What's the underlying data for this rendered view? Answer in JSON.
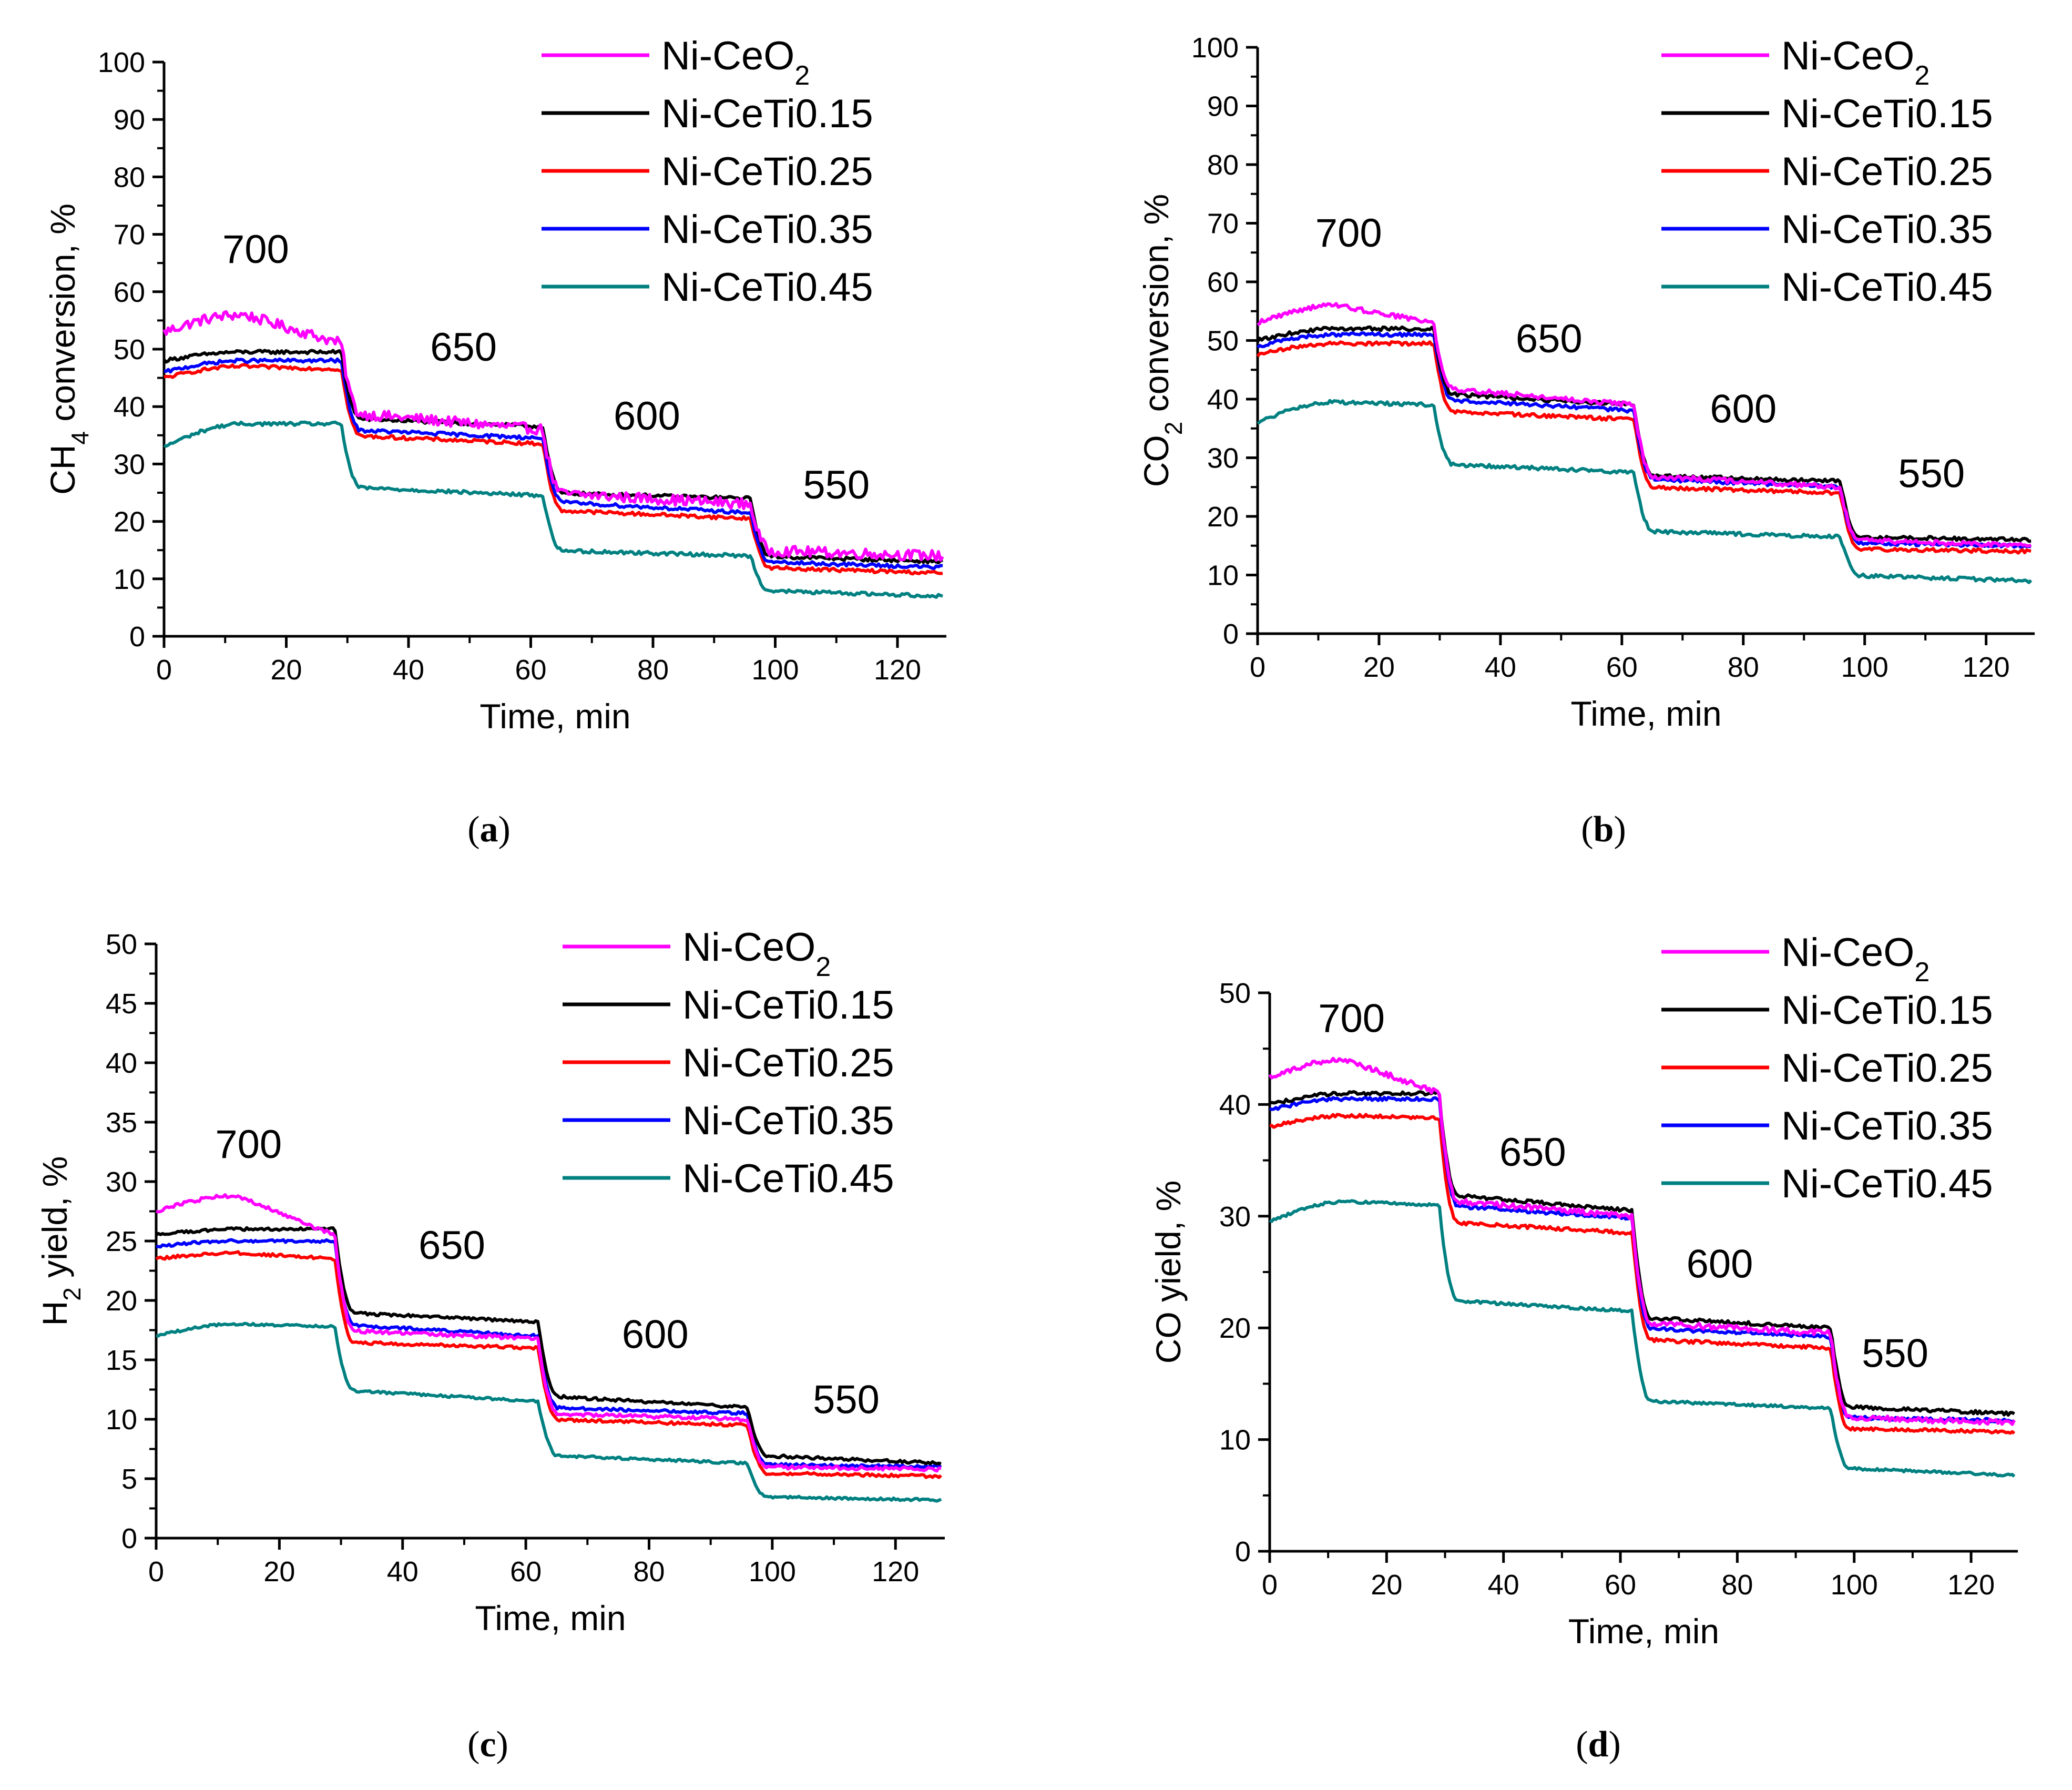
{
  "chart_data": [
    {
      "type": "line",
      "panel": "a",
      "caption_label": "a",
      "xlabel": "Time, min",
      "ylabel_main": "CH",
      "ylabel_sub": "4",
      "ylabel_rest": " conversion, %",
      "xlim": [
        0,
        128
      ],
      "ylim": [
        0,
        100
      ],
      "xticks": [
        0,
        20,
        40,
        60,
        80,
        100,
        120
      ],
      "yticks": [
        0,
        10,
        20,
        30,
        40,
        50,
        60,
        70,
        80,
        90,
        100
      ],
      "step_times": [
        29,
        62,
        96
      ],
      "series": [
        {
          "name": "Ni-CeO2",
          "color": "#ff00ff",
          "levels": [
            [
              53,
              56,
              51
            ],
            [
              39,
              36
            ],
            [
              25,
              23
            ],
            [
              15,
              14
            ]
          ],
          "noise": 0.9
        },
        {
          "name": "Ni-CeTi0.15",
          "color": "#000000",
          "levels": [
            [
              48,
              49.5,
              49.5
            ],
            [
              38,
              36.5
            ],
            [
              25,
              24
            ],
            [
              14,
              13
            ]
          ],
          "noise": 0.3
        },
        {
          "name": "Ni-CeTi0.25",
          "color": "#ff0000",
          "levels": [
            [
              45,
              47,
              46.5
            ],
            [
              35,
              33.5
            ],
            [
              22,
              20.5
            ],
            [
              12,
              11
            ]
          ],
          "noise": 0.3
        },
        {
          "name": "Ni-CeTi0.35",
          "color": "#0000ff",
          "levels": [
            [
              46,
              48,
              48
            ],
            [
              36,
              34.5
            ],
            [
              23.5,
              21.5
            ],
            [
              13,
              12
            ]
          ],
          "noise": 0.3
        },
        {
          "name": "Ni-CeTi0.45",
          "color": "#008080",
          "levels": [
            [
              33,
              37,
              37
            ],
            [
              26,
              24.5
            ],
            [
              15,
              14
            ],
            [
              8,
              7
            ]
          ],
          "noise": 0.3
        }
      ],
      "annotations": [
        {
          "text": "700",
          "x": 15,
          "y": 65
        },
        {
          "text": "650",
          "x": 49,
          "y": 48
        },
        {
          "text": "600",
          "x": 79,
          "y": 36
        },
        {
          "text": "550",
          "x": 110,
          "y": 24
        }
      ],
      "legend": {
        "position": "top-right",
        "entries": [
          {
            "main": "Ni-CeO",
            "sub": "2",
            "color": "#ff00ff"
          },
          {
            "main": "Ni-CeTi0.15",
            "sub": "",
            "color": "#000000"
          },
          {
            "main": "Ni-CeTi0.25",
            "sub": "",
            "color": "#ff0000"
          },
          {
            "main": "Ni-CeTi0.35",
            "sub": "",
            "color": "#0000ff"
          },
          {
            "main": "Ni-CeTi0.45",
            "sub": "",
            "color": "#008080"
          }
        ]
      }
    },
    {
      "type": "line",
      "panel": "b",
      "caption_label": "b",
      "xlabel": "Time, min",
      "ylabel_main": "CO",
      "ylabel_sub": "2",
      "ylabel_rest": " conversion, %",
      "xlim": [
        0,
        128
      ],
      "ylim": [
        0,
        100
      ],
      "xticks": [
        0,
        20,
        40,
        60,
        80,
        100,
        120
      ],
      "yticks": [
        0,
        10,
        20,
        30,
        40,
        50,
        60,
        70,
        80,
        90,
        100
      ],
      "step_times": [
        29,
        62,
        96
      ],
      "series": [
        {
          "name": "Ni-CeO2",
          "color": "#ff00ff",
          "levels": [
            [
              53,
              56,
              53
            ],
            [
              42,
              39
            ],
            [
              27,
              25
            ],
            [
              16,
              15
            ]
          ],
          "noise": 0.4
        },
        {
          "name": "Ni-CeTi0.15",
          "color": "#000000",
          "levels": [
            [
              50,
              52,
              52
            ],
            [
              41,
              39
            ],
            [
              27,
              26
            ],
            [
              16.5,
              16
            ]
          ],
          "noise": 0.3
        },
        {
          "name": "Ni-CeTi0.25",
          "color": "#ff0000",
          "levels": [
            [
              47.5,
              49.5,
              49.5
            ],
            [
              38,
              36.5
            ],
            [
              25,
              24
            ],
            [
              14.5,
              14
            ]
          ],
          "noise": 0.3
        },
        {
          "name": "Ni-CeTi0.35",
          "color": "#0000ff",
          "levels": [
            [
              49,
              51,
              51
            ],
            [
              40,
              38
            ],
            [
              26.5,
              25
            ],
            [
              15.5,
              15
            ]
          ],
          "noise": 0.3
        },
        {
          "name": "Ni-CeTi0.45",
          "color": "#008080",
          "levels": [
            [
              36,
              39.5,
              39
            ],
            [
              29,
              27.5
            ],
            [
              17.5,
              16.5
            ],
            [
              10,
              9
            ]
          ],
          "noise": 0.3
        }
      ],
      "annotations": [
        {
          "text": "700",
          "x": 15,
          "y": 66
        },
        {
          "text": "650",
          "x": 48,
          "y": 48
        },
        {
          "text": "600",
          "x": 80,
          "y": 36
        },
        {
          "text": "550",
          "x": 111,
          "y": 25
        }
      ],
      "legend": {
        "position": "top-right",
        "entries": [
          {
            "main": "Ni-CeO",
            "sub": "2",
            "color": "#ff00ff"
          },
          {
            "main": "Ni-CeTi0.15",
            "sub": "",
            "color": "#000000"
          },
          {
            "main": "Ni-CeTi0.25",
            "sub": "",
            "color": "#ff0000"
          },
          {
            "main": "Ni-CeTi0.35",
            "sub": "",
            "color": "#0000ff"
          },
          {
            "main": "Ni-CeTi0.45",
            "sub": "",
            "color": "#008080"
          }
        ]
      }
    },
    {
      "type": "line",
      "panel": "c",
      "caption_label": "c",
      "xlabel": "Time, min",
      "ylabel_main": "H",
      "ylabel_sub": "2",
      "ylabel_rest": " yield, %",
      "xlim": [
        0,
        128
      ],
      "ylim": [
        0,
        50
      ],
      "xticks": [
        0,
        20,
        40,
        60,
        80,
        100,
        120
      ],
      "yticks": [
        0,
        5,
        10,
        15,
        20,
        25,
        30,
        35,
        40,
        45,
        50
      ],
      "step_times": [
        29,
        62,
        96
      ],
      "series": [
        {
          "name": "Ni-CeO2",
          "color": "#ff00ff",
          "levels": [
            [
              27.5,
              28.8,
              25.5
            ],
            [
              17.5,
              16.8
            ],
            [
              10.5,
              10
            ],
            [
              6,
              5.8
            ]
          ],
          "noise": 0.15
        },
        {
          "name": "Ni-CeTi0.15",
          "color": "#000000",
          "levels": [
            [
              25.5,
              26,
              26
            ],
            [
              19,
              18.2
            ],
            [
              12,
              11
            ],
            [
              7,
              6.3
            ]
          ],
          "noise": 0.12
        },
        {
          "name": "Ni-CeTi0.25",
          "color": "#ff0000",
          "levels": [
            [
              23.5,
              24,
              23.5
            ],
            [
              16.5,
              16
            ],
            [
              10,
              9.5
            ],
            [
              5.5,
              5.2
            ]
          ],
          "noise": 0.12
        },
        {
          "name": "Ni-CeTi0.35",
          "color": "#0000ff",
          "levels": [
            [
              24.5,
              25,
              25
            ],
            [
              18,
              17
            ],
            [
              11,
              10.5
            ],
            [
              6.2,
              6
            ]
          ],
          "noise": 0.12
        },
        {
          "name": "Ni-CeTi0.45",
          "color": "#008080",
          "levels": [
            [
              17,
              18,
              17.8
            ],
            [
              12.5,
              11.5
            ],
            [
              7,
              6.3
            ],
            [
              3.5,
              3.2
            ]
          ],
          "noise": 0.1
        }
      ],
      "annotations": [
        {
          "text": "700",
          "x": 15,
          "y": 32
        },
        {
          "text": "650",
          "x": 48,
          "y": 23.5
        },
        {
          "text": "600",
          "x": 81,
          "y": 16
        },
        {
          "text": "550",
          "x": 112,
          "y": 10.5
        }
      ],
      "legend": {
        "position": "top-right",
        "entries": [
          {
            "main": "Ni-CeO",
            "sub": "2",
            "color": "#ff00ff"
          },
          {
            "main": "Ni-CeTi0.15",
            "sub": "",
            "color": "#000000"
          },
          {
            "main": "Ni-CeTi0.25",
            "sub": "",
            "color": "#ff0000"
          },
          {
            "main": "Ni-CeTi0.35",
            "sub": "",
            "color": "#0000ff"
          },
          {
            "main": "Ni-CeTi0.45",
            "sub": "",
            "color": "#008080"
          }
        ]
      }
    },
    {
      "type": "line",
      "panel": "d",
      "caption_label": "d",
      "xlabel": "Time, min",
      "ylabel_main": "CO yield, %",
      "ylabel_sub": "",
      "ylabel_rest": "",
      "xlim": [
        0,
        128
      ],
      "ylim": [
        0,
        50
      ],
      "xticks": [
        0,
        20,
        40,
        60,
        80,
        100,
        120
      ],
      "yticks": [
        0,
        10,
        20,
        30,
        40,
        50
      ],
      "step_times": [
        29,
        62,
        96
      ],
      "series": [
        {
          "name": "Ni-CeO2",
          "color": "#ff00ff",
          "levels": [
            [
              42.5,
              44,
              41
            ],
            [
              31.5,
              30
            ],
            [
              20.5,
              19.5
            ],
            [
              12,
              11.5
            ]
          ],
          "noise": 0.25
        },
        {
          "name": "Ni-CeTi0.15",
          "color": "#000000",
          "levels": [
            [
              40,
              41,
              41
            ],
            [
              32,
              30.5
            ],
            [
              21,
              20
            ],
            [
              13,
              12.3
            ]
          ],
          "noise": 0.15
        },
        {
          "name": "Ni-CeTi0.25",
          "color": "#ff0000",
          "levels": [
            [
              38,
              39,
              38.8
            ],
            [
              29.5,
              28.5
            ],
            [
              19,
              18.2
            ],
            [
              11,
              10.7
            ]
          ],
          "noise": 0.15
        },
        {
          "name": "Ni-CeTi0.35",
          "color": "#0000ff",
          "levels": [
            [
              39.5,
              40.5,
              40.5
            ],
            [
              31,
              29.8
            ],
            [
              20,
              19.2
            ],
            [
              12,
              11.7
            ]
          ],
          "noise": 0.15
        },
        {
          "name": "Ni-CeTi0.45",
          "color": "#008080",
          "levels": [
            [
              29.5,
              31.3,
              31
            ],
            [
              22.5,
              21.5
            ],
            [
              13.5,
              12.8
            ],
            [
              7.5,
              6.8
            ]
          ],
          "noise": 0.12
        }
      ],
      "annotations": [
        {
          "text": "700",
          "x": 14,
          "y": 46.5
        },
        {
          "text": "650",
          "x": 45,
          "y": 34.5
        },
        {
          "text": "600",
          "x": 77,
          "y": 24.5
        },
        {
          "text": "550",
          "x": 107,
          "y": 16.5
        }
      ],
      "legend": {
        "position": "top-right",
        "entries": [
          {
            "main": "Ni-CeO",
            "sub": "2",
            "color": "#ff00ff"
          },
          {
            "main": "Ni-CeTi0.15",
            "sub": "",
            "color": "#000000"
          },
          {
            "main": "Ni-CeTi0.25",
            "sub": "",
            "color": "#ff0000"
          },
          {
            "main": "Ni-CeTi0.35",
            "sub": "",
            "color": "#0000ff"
          },
          {
            "main": "Ni-CeTi0.45",
            "sub": "",
            "color": "#008080"
          }
        ]
      }
    }
  ]
}
